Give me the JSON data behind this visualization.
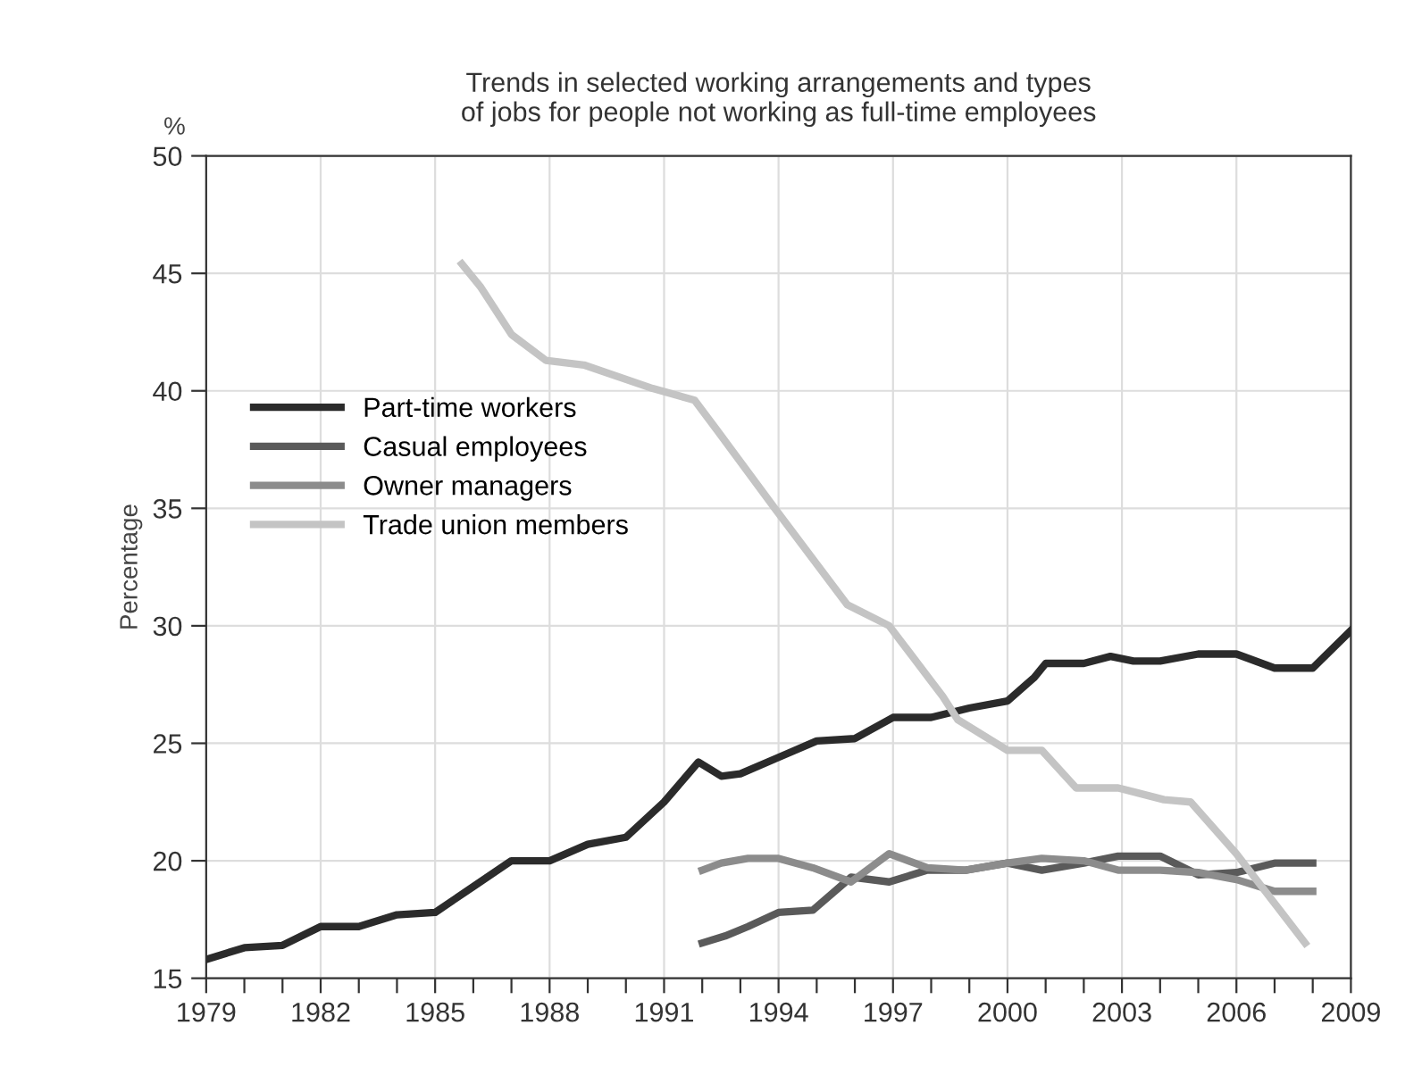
{
  "chart_data": {
    "type": "line",
    "title": "Trends in selected working arrangements and types\nof jobs for people not working as full-time employees",
    "ylabel": "Percentage",
    "annotations": [
      "%"
    ],
    "xlim": [
      1979,
      2009
    ],
    "ylim": [
      15,
      50
    ],
    "xticks": [
      1979,
      {
        "value": 1980,
        "label": null
      },
      {
        "value": 1981,
        "label": null
      },
      1982,
      {
        "value": 1983,
        "label": null
      },
      {
        "value": 1984,
        "label": null
      },
      1985,
      {
        "value": 1986,
        "label": null
      },
      {
        "value": 1987,
        "label": null
      },
      1988,
      {
        "value": 1989,
        "label": null
      },
      {
        "value": 1990,
        "label": null
      },
      1991,
      {
        "value": 1992,
        "label": null
      },
      {
        "value": 1993,
        "label": null
      },
      1994,
      {
        "value": 1995,
        "label": null
      },
      {
        "value": 1996,
        "label": null
      },
      1997,
      {
        "value": 1998,
        "label": null
      },
      {
        "value": 1999,
        "label": null
      },
      2000,
      {
        "value": 2001,
        "label": null
      },
      {
        "value": 2002,
        "label": null
      },
      2003,
      {
        "value": 2004,
        "label": null
      },
      {
        "value": 2005,
        "label": null
      },
      2006,
      {
        "value": 2007,
        "label": null
      },
      {
        "value": 2008,
        "label": null
      },
      2009
    ],
    "yticks": [
      15,
      20,
      25,
      30,
      35,
      40,
      45,
      50
    ],
    "grid": true,
    "legend": "left",
    "marker": "none",
    "line_style": "solid",
    "series": [
      {
        "name": "Part-time workers",
        "color": "#2b2b2b",
        "x": [
          1979,
          1980,
          1981,
          1982,
          1983,
          1984,
          1985,
          1986,
          1987,
          1988,
          1989,
          1990,
          1991,
          1991.9,
          1992.5,
          1993,
          1994,
          1995,
          1996,
          1997,
          1998,
          1999,
          2000,
          2000.7,
          2001,
          2002,
          2002.7,
          2003.3,
          2004,
          2005,
          2006,
          2007,
          2008,
          2009
        ],
        "values": [
          15.8,
          16.3,
          16.4,
          17.2,
          17.2,
          17.7,
          17.8,
          18.9,
          20.0,
          20.0,
          20.7,
          21.0,
          22.5,
          24.2,
          23.6,
          23.7,
          24.4,
          25.1,
          25.2,
          26.1,
          26.1,
          26.5,
          26.8,
          27.8,
          28.4,
          28.4,
          28.7,
          28.5,
          28.5,
          28.8,
          28.8,
          28.2,
          28.2,
          29.8
        ]
      },
      {
        "name": "Casual employees",
        "color": "#5a5a5a",
        "x": [
          1992,
          1992.6,
          1993.2,
          1994,
          1994.9,
          1995.9,
          1996.9,
          1997.9,
          1998.9,
          2000,
          2000.9,
          2002,
          2002.9,
          2004,
          2005,
          2006,
          2007,
          2008
        ],
        "values": [
          16.5,
          16.8,
          17.2,
          17.8,
          17.9,
          19.3,
          19.1,
          19.6,
          19.6,
          19.9,
          19.6,
          19.9,
          20.2,
          20.2,
          19.4,
          19.5,
          19.9,
          19.9
        ]
      },
      {
        "name": "Owner managers",
        "color": "#8c8c8c",
        "x": [
          1992,
          1992.5,
          1993.2,
          1994,
          1994.9,
          1995.9,
          1996.9,
          1997.9,
          1998.9,
          2000,
          2000.9,
          2002,
          2002.9,
          2004,
          2005,
          2006,
          2007,
          2008
        ],
        "values": [
          19.6,
          19.9,
          20.1,
          20.1,
          19.7,
          19.1,
          20.3,
          19.7,
          19.6,
          19.9,
          20.1,
          20.0,
          19.6,
          19.6,
          19.5,
          19.2,
          18.7,
          18.7
        ]
      },
      {
        "name": "Trade union members",
        "color": "#c4c4c4",
        "x": [
          1985.7,
          1986.2,
          1987,
          1987.9,
          1988.9,
          1990.7,
          1991.8,
          1992.4,
          1993.9,
          1995.8,
          1996.9,
          1998.3,
          1998.7,
          2000,
          2000.9,
          2001.8,
          2002.9,
          2004.1,
          2004.8,
          2006,
          2006.9,
          2007.8
        ],
        "values": [
          45.4,
          44.4,
          42.4,
          41.3,
          41.1,
          40.1,
          39.6,
          38.3,
          35.0,
          30.9,
          30.0,
          27.0,
          26.0,
          24.7,
          24.7,
          23.1,
          23.1,
          22.6,
          22.5,
          20.3,
          18.4,
          16.5
        ]
      }
    ]
  }
}
